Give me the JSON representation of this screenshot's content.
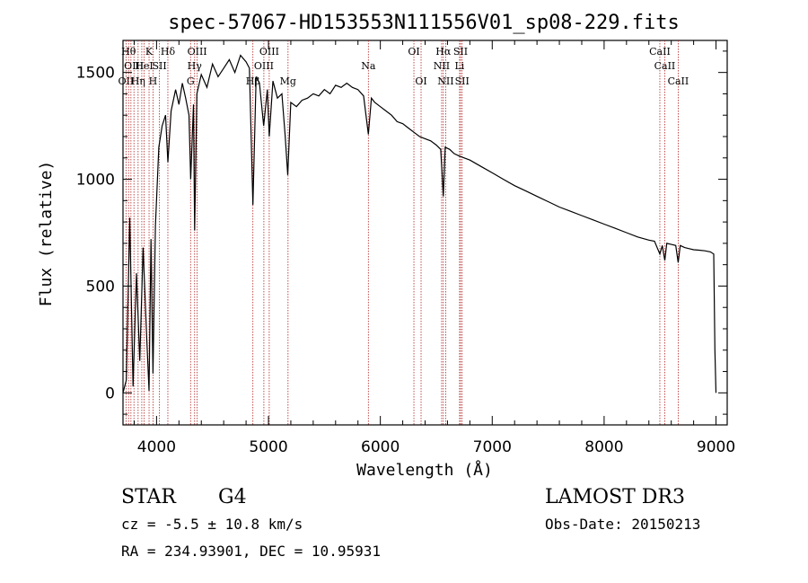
{
  "chart_data": {
    "type": "line",
    "title": "spec-57067-HD153553N111556V01_sp08-229.fits",
    "xlabel": "Wavelength (Å)",
    "ylabel": "Flux (relative)",
    "xlim": [
      3700,
      9100
    ],
    "ylim": [
      -150,
      1650
    ],
    "xticks": [
      4000,
      5000,
      6000,
      7000,
      8000,
      9000
    ],
    "yticks": [
      0,
      500,
      1000,
      1500
    ],
    "series": [
      {
        "name": "spectrum",
        "x": [
          3700,
          3730,
          3760,
          3790,
          3820,
          3850,
          3880,
          3910,
          3933,
          3950,
          3968,
          3990,
          4020,
          4050,
          4080,
          4101,
          4130,
          4170,
          4200,
          4230,
          4260,
          4290,
          4305,
          4330,
          4340,
          4360,
          4400,
          4450,
          4500,
          4550,
          4600,
          4650,
          4700,
          4750,
          4800,
          4830,
          4861,
          4890,
          4920,
          4957,
          4990,
          5007,
          5040,
          5080,
          5120,
          5150,
          5172,
          5200,
          5250,
          5300,
          5350,
          5400,
          5450,
          5500,
          5550,
          5600,
          5650,
          5700,
          5750,
          5800,
          5850,
          5893,
          5920,
          5950,
          6000,
          6050,
          6100,
          6150,
          6200,
          6250,
          6300,
          6350,
          6400,
          6450,
          6500,
          6540,
          6563,
          6580,
          6620,
          6660,
          6700,
          6750,
          6800,
          6900,
          7000,
          7100,
          7200,
          7300,
          7400,
          7500,
          7600,
          7700,
          7800,
          7900,
          8000,
          8100,
          8200,
          8300,
          8400,
          8450,
          8498,
          8520,
          8542,
          8560,
          8600,
          8640,
          8662,
          8680,
          8720,
          8760,
          8800,
          8850,
          8900,
          8950,
          8980,
          8990,
          9000
        ],
        "y": [
          0,
          60,
          820,
          30,
          560,
          150,
          680,
          280,
          10,
          720,
          90,
          780,
          1150,
          1250,
          1300,
          1080,
          1320,
          1420,
          1350,
          1450,
          1380,
          1300,
          1000,
          1350,
          760,
          1400,
          1490,
          1430,
          1540,
          1480,
          1520,
          1560,
          1500,
          1580,
          1550,
          1520,
          880,
          1480,
          1450,
          1250,
          1420,
          1200,
          1460,
          1380,
          1400,
          1200,
          1020,
          1360,
          1340,
          1370,
          1380,
          1400,
          1390,
          1420,
          1400,
          1440,
          1430,
          1450,
          1430,
          1420,
          1390,
          1210,
          1380,
          1360,
          1340,
          1320,
          1300,
          1270,
          1260,
          1240,
          1220,
          1200,
          1190,
          1180,
          1160,
          1140,
          920,
          1150,
          1140,
          1120,
          1110,
          1100,
          1090,
          1060,
          1030,
          1000,
          970,
          945,
          920,
          895,
          870,
          850,
          830,
          810,
          790,
          770,
          750,
          730,
          715,
          710,
          650,
          690,
          620,
          700,
          695,
          690,
          610,
          690,
          680,
          675,
          670,
          668,
          665,
          660,
          650,
          200,
          0
        ]
      }
    ],
    "lines": [
      {
        "wl": 3727,
        "label": "OII",
        "row": 3
      },
      {
        "wl": 3750,
        "label": "Hθ",
        "row": 1
      },
      {
        "wl": 3771,
        "label": "",
        "row": 0
      },
      {
        "wl": 3798,
        "label": "OIII",
        "row": 2
      },
      {
        "wl": 3835,
        "label": "Hη",
        "row": 3
      },
      {
        "wl": 3868,
        "label": "",
        "row": 0
      },
      {
        "wl": 3889,
        "label": "HeI",
        "row": 2
      },
      {
        "wl": 3933,
        "label": "K",
        "row": 1
      },
      {
        "wl": 3968,
        "label": "H",
        "row": 3
      },
      {
        "wl": 4026,
        "label": "SII",
        "row": 2
      },
      {
        "wl": 4101,
        "label": "Hδ",
        "row": 1
      },
      {
        "wl": 4304,
        "label": "G",
        "row": 3
      },
      {
        "wl": 4340,
        "label": "Hγ",
        "row": 2
      },
      {
        "wl": 4363,
        "label": "OIII",
        "row": 1
      },
      {
        "wl": 4861,
        "label": "Hβ",
        "row": 3
      },
      {
        "wl": 4959,
        "label": "OIII",
        "row": 2
      },
      {
        "wl": 5007,
        "label": "OIII",
        "row": 1
      },
      {
        "wl": 5175,
        "label": "Mg",
        "row": 3
      },
      {
        "wl": 5893,
        "label": "Na",
        "row": 2
      },
      {
        "wl": 6300,
        "label": "OI",
        "row": 1
      },
      {
        "wl": 6364,
        "label": "OI",
        "row": 3
      },
      {
        "wl": 6548,
        "label": "NII",
        "row": 2
      },
      {
        "wl": 6563,
        "label": "Hα",
        "row": 1
      },
      {
        "wl": 6584,
        "label": "NII",
        "row": 3
      },
      {
        "wl": 6708,
        "label": "Li",
        "row": 2
      },
      {
        "wl": 6717,
        "label": "SII",
        "row": 1
      },
      {
        "wl": 6731,
        "label": "SII",
        "row": 3
      },
      {
        "wl": 8498,
        "label": "CaII",
        "row": 1
      },
      {
        "wl": 8542,
        "label": "CaII",
        "row": 2
      },
      {
        "wl": 8662,
        "label": "CaII",
        "row": 3
      }
    ]
  },
  "info": {
    "class_label": "STAR",
    "subclass": "G4",
    "redshift": "cz = -5.5 ± 10.8 km/s",
    "coords": "RA = 234.93901, DEC =  10.95931",
    "survey": "LAMOST DR3",
    "obs_date": "Obs-Date: 20150213"
  },
  "colors": {
    "axis": "#000000",
    "spectrum": "#000000",
    "line_marker": "#b22222"
  }
}
